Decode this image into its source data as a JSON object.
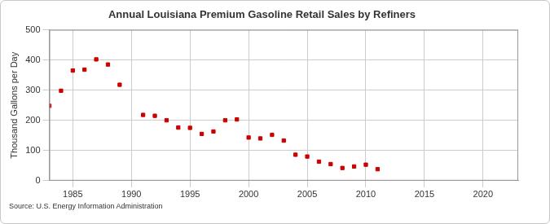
{
  "chart_data": {
    "type": "scatter",
    "title": "Annual Louisiana Premium Gasoline Retail Sales by Refiners",
    "y_label": "Thousand Gallons per Day",
    "source": "Source: U.S. Energy Information Administration",
    "x": [
      1983,
      1984,
      1985,
      1986,
      1987,
      1988,
      1989,
      1991,
      1992,
      1993,
      1994,
      1995,
      1996,
      1997,
      1998,
      1999,
      2000,
      2001,
      2002,
      2003,
      2004,
      2005,
      2006,
      2007,
      2008,
      2009,
      2010,
      2011
    ],
    "values": [
      248,
      298,
      365,
      368,
      402,
      385,
      318,
      218,
      215,
      200,
      176,
      175,
      155,
      163,
      200,
      203,
      143,
      140,
      152,
      133,
      86,
      80,
      63,
      55,
      42,
      47,
      53,
      38
    ],
    "color": "#cc0000",
    "marker": "square",
    "xlim": [
      1983,
      2023
    ],
    "xticks": [
      1985,
      1990,
      1995,
      2000,
      2005,
      2010,
      2015,
      2020
    ],
    "ylim": [
      0,
      500
    ],
    "yticks": [
      0,
      100,
      200,
      300,
      400,
      500
    ],
    "grid": true
  }
}
